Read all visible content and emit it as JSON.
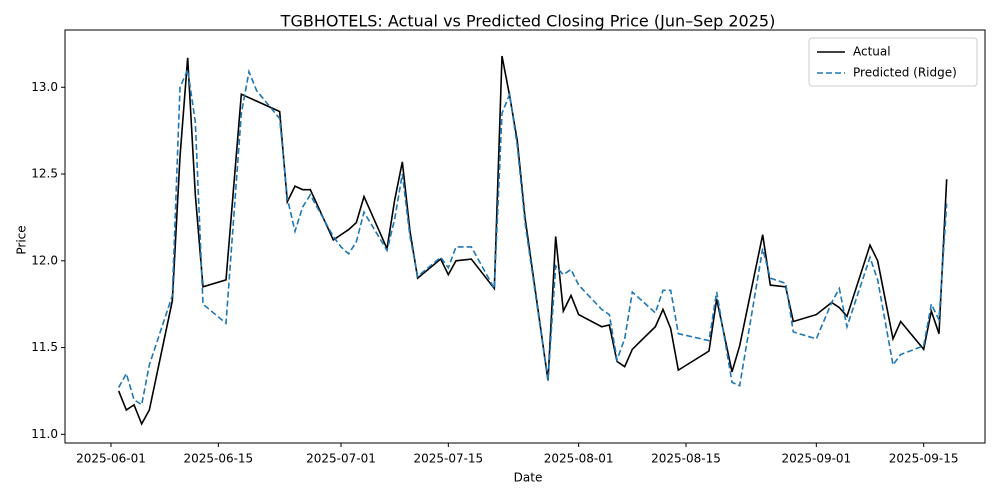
{
  "chart_data": {
    "type": "line",
    "title": "TGBHOTELS: Actual vs Predicted Closing Price (Jun–Sep 2025)",
    "x_label": "Date",
    "y_label": "Price",
    "x": [
      "2025-06-02",
      "2025-06-03",
      "2025-06-04",
      "2025-06-05",
      "2025-06-06",
      "2025-06-09",
      "2025-06-10",
      "2025-06-11",
      "2025-06-12",
      "2025-06-13",
      "2025-06-16",
      "2025-06-18",
      "2025-06-19",
      "2025-06-20",
      "2025-06-23",
      "2025-06-24",
      "2025-06-25",
      "2025-06-26",
      "2025-06-27",
      "2025-06-30",
      "2025-07-01",
      "2025-07-02",
      "2025-07-03",
      "2025-07-04",
      "2025-07-07",
      "2025-07-08",
      "2025-07-09",
      "2025-07-10",
      "2025-07-11",
      "2025-07-14",
      "2025-07-15",
      "2025-07-16",
      "2025-07-18",
      "2025-07-21",
      "2025-07-22",
      "2025-07-23",
      "2025-07-24",
      "2025-07-25",
      "2025-07-28",
      "2025-07-29",
      "2025-07-30",
      "2025-07-31",
      "2025-08-01",
      "2025-08-04",
      "2025-08-05",
      "2025-08-06",
      "2025-08-07",
      "2025-08-08",
      "2025-08-11",
      "2025-08-12",
      "2025-08-13",
      "2025-08-14",
      "2025-08-18",
      "2025-08-19",
      "2025-08-21",
      "2025-08-22",
      "2025-08-25",
      "2025-08-26",
      "2025-08-28",
      "2025-08-29",
      "2025-09-01",
      "2025-09-03",
      "2025-09-04",
      "2025-09-05",
      "2025-09-08",
      "2025-09-09",
      "2025-09-11",
      "2025-09-12",
      "2025-09-15",
      "2025-09-16",
      "2025-09-17",
      "2025-09-18"
    ],
    "series": [
      {
        "name": "Actual",
        "color": "#000000",
        "dash": false,
        "values": [
          11.25,
          11.14,
          11.17,
          11.06,
          11.14,
          11.77,
          12.6,
          13.17,
          12.38,
          11.85,
          11.89,
          12.96,
          12.94,
          12.92,
          12.86,
          12.34,
          12.43,
          12.41,
          12.41,
          12.12,
          12.15,
          12.18,
          12.22,
          12.37,
          12.07,
          12.35,
          12.57,
          12.17,
          11.9,
          12.01,
          11.92,
          12.0,
          12.01,
          11.84,
          13.18,
          12.95,
          12.69,
          12.25,
          11.31,
          12.14,
          11.71,
          11.8,
          11.69,
          11.62,
          11.63,
          11.42,
          11.39,
          11.49,
          11.62,
          11.72,
          11.61,
          11.37,
          11.48,
          11.78,
          11.36,
          11.51,
          12.15,
          11.86,
          11.85,
          11.65,
          11.69,
          11.76,
          11.73,
          11.68,
          12.09,
          12.0,
          11.55,
          11.65,
          11.49,
          11.71,
          11.58,
          12.47
        ]
      },
      {
        "name": "Predicted (Ridge)",
        "color": "#1f77b4",
        "dash": true,
        "values": [
          11.27,
          11.35,
          11.2,
          11.17,
          11.4,
          11.8,
          13.0,
          13.1,
          12.8,
          11.75,
          11.64,
          12.85,
          13.09,
          12.98,
          12.82,
          12.36,
          12.17,
          12.31,
          12.38,
          12.14,
          12.08,
          12.04,
          12.11,
          12.28,
          12.06,
          12.24,
          12.5,
          12.14,
          11.91,
          12.02,
          11.96,
          12.08,
          12.08,
          11.84,
          12.85,
          12.96,
          12.66,
          12.22,
          11.31,
          11.97,
          11.92,
          11.95,
          11.86,
          11.72,
          11.69,
          11.43,
          11.55,
          11.82,
          11.7,
          11.83,
          11.83,
          11.58,
          11.54,
          11.82,
          11.3,
          11.28,
          12.07,
          11.9,
          11.87,
          11.59,
          11.55,
          11.76,
          11.84,
          11.62,
          12.02,
          11.89,
          11.4,
          11.46,
          11.51,
          11.75,
          11.66,
          12.33
        ]
      }
    ],
    "xlim": [
      "2025-05-26",
      "2025-09-23"
    ],
    "xticks": [
      "2025-06-01",
      "2025-06-15",
      "2025-07-01",
      "2025-07-15",
      "2025-08-01",
      "2025-08-15",
      "2025-09-01",
      "2025-09-15"
    ],
    "ylim": [
      10.95,
      13.33
    ],
    "yticks": [
      {
        "value": 11,
        "label": "11.0"
      },
      11.5,
      {
        "value": 12,
        "label": "12.0"
      },
      12.5,
      {
        "value": 13,
        "label": "13.0"
      }
    ],
    "legend": "upper right"
  }
}
